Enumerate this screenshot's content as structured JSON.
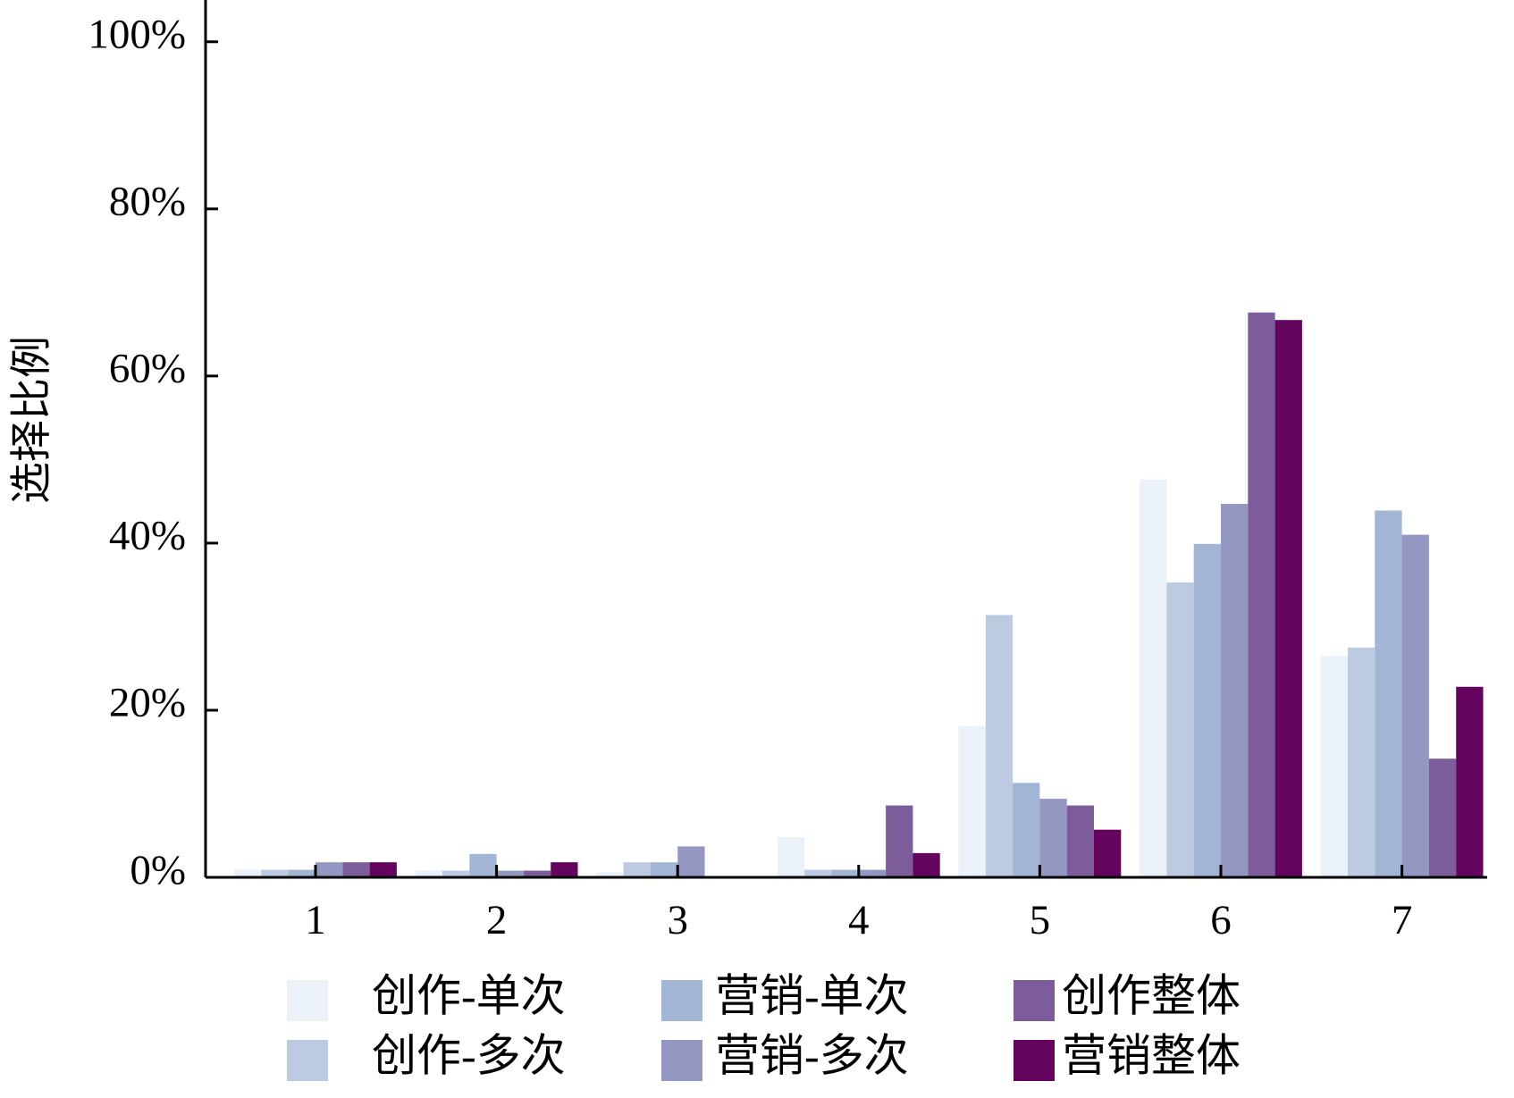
{
  "chart_data": {
    "type": "bar",
    "y_label": "选择比例",
    "categories": [
      "1",
      "2",
      "3",
      "4",
      "5",
      "6",
      "7"
    ],
    "series": [
      {
        "name": "创作-单次",
        "color": "#eaf1f8",
        "values": [
          0.9,
          0.8,
          0.6,
          4.8,
          18.1,
          47.6,
          26.5
        ]
      },
      {
        "name": "创作-多次",
        "color": "#bccbe1",
        "values": [
          0.9,
          0.8,
          1.8,
          0.9,
          31.4,
          35.3,
          27.5
        ]
      },
      {
        "name": "营销-单次",
        "color": "#a3b5d5",
        "values": [
          0.9,
          2.8,
          1.8,
          0.9,
          11.3,
          39.9,
          43.9
        ]
      },
      {
        "name": "营销-多次",
        "color": "#9397c2",
        "values": [
          1.8,
          0.8,
          3.7,
          0.9,
          9.4,
          44.7,
          41.0
        ]
      },
      {
        "name": "创作整体",
        "color": "#7d5c9c",
        "values": [
          1.8,
          0.8,
          0,
          8.6,
          8.6,
          67.6,
          14.2
        ]
      },
      {
        "name": "营销整体",
        "color": "#65045f",
        "values": [
          1.8,
          1.8,
          0,
          2.9,
          5.7,
          66.7,
          22.8
        ]
      }
    ],
    "ylim": [
      0,
      105
    ],
    "yticks": [
      {
        "value": 0,
        "label": "0%"
      },
      {
        "value": 20,
        "label": "20%"
      },
      {
        "value": 40,
        "label": "40%"
      },
      {
        "value": 60,
        "label": "60%"
      },
      {
        "value": 80,
        "label": "80%"
      },
      {
        "value": 100,
        "label": "100%"
      }
    ]
  }
}
